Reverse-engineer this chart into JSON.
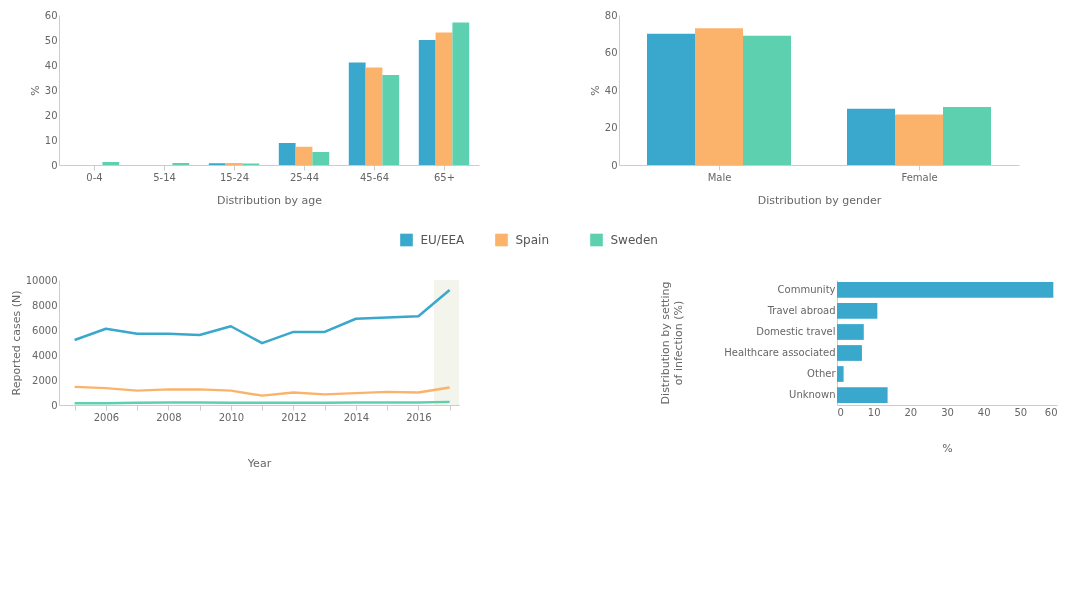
{
  "chart_data": [
    {
      "type": "bar",
      "categories": [
        "0-4",
        "5-14",
        "15-24",
        "25-44",
        "45-64",
        "65+"
      ],
      "xlabel": "Distribution by age",
      "ylabel": "%",
      "ylim": [
        0,
        60
      ],
      "yticks": [
        0,
        10,
        20,
        30,
        40,
        50,
        60
      ],
      "grid": false,
      "legend": "bottom",
      "series": [
        {
          "name": "EU/EEA",
          "color": "#3aa7cc",
          "values": [
            null,
            null,
            0.7,
            8.8,
            41,
            50
          ]
        },
        {
          "name": "Spain",
          "color": "#fbb36b",
          "values": [
            null,
            null,
            0.8,
            7.3,
            39,
            53
          ]
        },
        {
          "name": "Sweden",
          "color": "#5dd0b0",
          "values": [
            1.2,
            0.8,
            0.6,
            5.2,
            36,
            57
          ]
        }
      ]
    },
    {
      "type": "bar",
      "categories": [
        "Male",
        "Female"
      ],
      "xlabel": "Distribution by gender",
      "ylabel": "%",
      "ylim": [
        0,
        80
      ],
      "yticks": [
        0,
        20,
        40,
        60,
        80
      ],
      "grid": false,
      "series": [
        {
          "color": "#3aa7cc",
          "values": [
            70,
            30
          ]
        },
        {
          "color": "#fbb36b",
          "values": [
            73,
            27
          ]
        },
        {
          "color": "#5dd0b0",
          "values": [
            69,
            31
          ]
        }
      ]
    },
    {
      "type": "line",
      "x": [
        2005,
        2006,
        2007,
        2008,
        2009,
        2010,
        2011,
        2012,
        2013,
        2014,
        2015,
        2016,
        2017
      ],
      "xlabel": "Year",
      "ylabel": "Reported cases (N)",
      "xlim": [
        2004.5,
        2017.3
      ],
      "xticks": [
        {
          "value": 2005,
          "label": null
        },
        2006,
        {
          "value": 2007,
          "label": null
        },
        2008,
        {
          "value": 2009,
          "label": null
        },
        2010,
        {
          "value": 2011,
          "label": null
        },
        2012,
        {
          "value": 2013,
          "label": null
        },
        2014,
        {
          "value": 2015,
          "label": null
        },
        2016,
        {
          "value": 2017,
          "label": null
        }
      ],
      "ylim": [
        0,
        10000
      ],
      "yticks": [
        0,
        2000,
        4000,
        6000,
        8000,
        10000
      ],
      "grid": false,
      "marker": "none",
      "line_style": "solid",
      "bands": [
        {
          "axis": "x",
          "from": 2016.5,
          "to": 2017.3,
          "color": "#f3f4ec"
        }
      ],
      "series": [
        {
          "color": "#3aa7cc",
          "values": [
            5200,
            6100,
            5700,
            5700,
            5600,
            6300,
            4950,
            5850,
            5850,
            6900,
            7000,
            7100,
            9200
          ]
        },
        {
          "color": "#fbb36b",
          "values": [
            1450,
            1350,
            1150,
            1250,
            1250,
            1150,
            750,
            1000,
            850,
            950,
            1050,
            1000,
            1400
          ]
        },
        {
          "color": "#5dd0b0",
          "values": [
            150,
            150,
            180,
            200,
            200,
            180,
            180,
            180,
            180,
            200,
            200,
            200,
            250
          ]
        }
      ]
    },
    {
      "type": "bar",
      "orientation": "horizontal",
      "categories": [
        "Community",
        "Travel abroad",
        "Domestic travel",
        "Healthcare associated",
        "Other",
        "Unknown"
      ],
      "xlabel": "%",
      "ylabel": "Distribution by setting of infection (%)",
      "xlim": [
        0,
        60
      ],
      "xticks": [
        0,
        10,
        20,
        30,
        40,
        50,
        60
      ],
      "grid": false,
      "color": "#3aa7cc",
      "values": [
        59,
        11,
        7.3,
        6.8,
        1.8,
        13.8
      ]
    }
  ]
}
